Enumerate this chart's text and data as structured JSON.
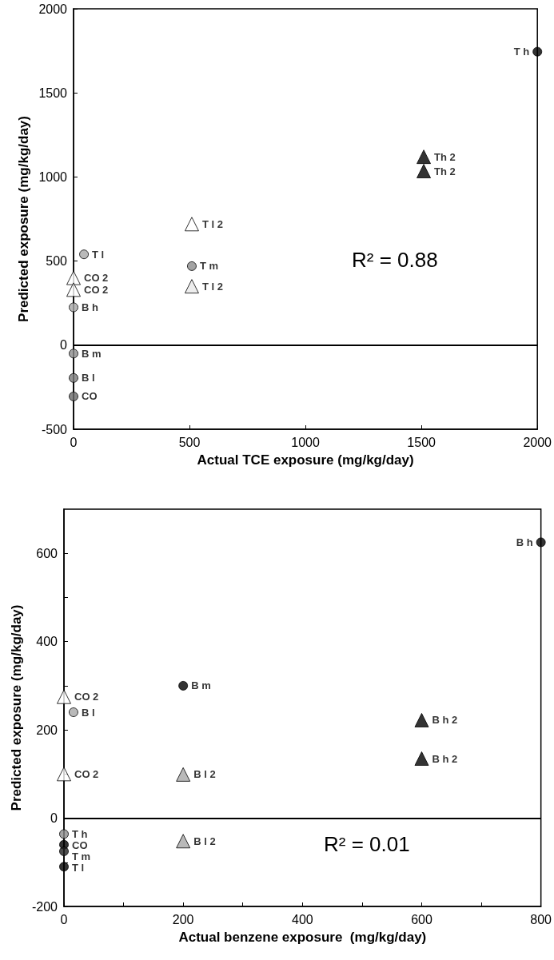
{
  "chart_data": [
    {
      "type": "scatter",
      "xlabel": "Actual TCE exposure (mg/kg/day)",
      "ylabel": "Predicted exposure (mg/kg/day)",
      "xlim": [
        0,
        2000
      ],
      "xticks": [
        0,
        500,
        1000,
        1500,
        2000
      ],
      "ylim": [
        -500,
        2000
      ],
      "yticks": [
        -500,
        0,
        500,
        1000,
        1500,
        2000
      ],
      "grid": false,
      "legend": false,
      "annotations": [
        "R² = 0.88"
      ],
      "ref_lines": [
        {
          "axis": "y",
          "value": 0,
          "color": "#000000"
        }
      ],
      "series": [
        {
          "name": "T l",
          "color": "#a8a8a8",
          "marker": "circle",
          "x": [
            45
          ],
          "values": [
            540
          ]
        },
        {
          "name": "CO 2",
          "color": "#ffffff",
          "marker": "triangle",
          "x": [
            0
          ],
          "values": [
            400
          ]
        },
        {
          "name": "CO 2",
          "color": "#ffffff",
          "marker": "triangle",
          "x": [
            0
          ],
          "values": [
            330
          ]
        },
        {
          "name": "B h",
          "color": "#a8a8a8",
          "marker": "circle",
          "x": [
            0
          ],
          "values": [
            225
          ]
        },
        {
          "name": "B m",
          "color": "#8c8c8c",
          "marker": "circle",
          "x": [
            0
          ],
          "values": [
            -50
          ]
        },
        {
          "name": "B l",
          "color": "#7a7a7a",
          "marker": "circle",
          "x": [
            0
          ],
          "values": [
            -195
          ]
        },
        {
          "name": "CO",
          "color": "#6a6a6a",
          "marker": "circle",
          "x": [
            0
          ],
          "values": [
            -305
          ]
        },
        {
          "name": "T l 2",
          "color": "#ffffff",
          "marker": "triangle",
          "x": [
            510
          ],
          "values": [
            720
          ]
        },
        {
          "name": "T m",
          "color": "#8c8c8c",
          "marker": "circle",
          "x": [
            510
          ],
          "values": [
            470
          ]
        },
        {
          "name": "T l 2",
          "color": "#e8e8e8",
          "marker": "triangle",
          "x": [
            510
          ],
          "values": [
            350
          ]
        },
        {
          "name": "Th 2",
          "color": "#000000",
          "marker": "triangle",
          "x": [
            1510
          ],
          "values": [
            1120
          ]
        },
        {
          "name": "Th 2",
          "color": "#000000",
          "marker": "triangle",
          "x": [
            1510
          ],
          "values": [
            1035
          ]
        },
        {
          "name": "T h",
          "color": "#000000",
          "marker": "circle",
          "x": [
            2000
          ],
          "values": [
            1745
          ]
        }
      ]
    },
    {
      "type": "scatter",
      "xlabel": "Actual benzene exposure  (mg/kg/day)",
      "ylabel": "Predicted exposure (mg/kg/day)",
      "xlim": [
        0,
        800
      ],
      "xticks": [
        0,
        {
          "value": 100,
          "label": null
        },
        200,
        {
          "value": 300,
          "label": null
        },
        400,
        {
          "value": 500,
          "label": null
        },
        600,
        {
          "value": 700,
          "label": null
        },
        800
      ],
      "ylim": [
        -200,
        700
      ],
      "yticks": [
        -200,
        {
          "value": -100,
          "label": null
        },
        0,
        {
          "value": 100,
          "label": null
        },
        200,
        {
          "value": 300,
          "label": null
        },
        400,
        {
          "value": 500,
          "label": null
        },
        600
      ],
      "grid": false,
      "legend": false,
      "annotations": [
        "R² = 0.01"
      ],
      "ref_lines": [
        {
          "axis": "y",
          "value": 0,
          "color": "#000000"
        }
      ],
      "series": [
        {
          "name": "CO 2",
          "color": "#ffffff",
          "marker": "triangle",
          "x": [
            0
          ],
          "values": [
            275
          ]
        },
        {
          "name": "B l",
          "color": "#a8a8a8",
          "marker": "circle",
          "x": [
            16
          ],
          "values": [
            240
          ]
        },
        {
          "name": "CO 2",
          "color": "#ffffff",
          "marker": "triangle",
          "x": [
            0
          ],
          "values": [
            100
          ]
        },
        {
          "name": "B m",
          "color": "#000000",
          "marker": "circle",
          "x": [
            200
          ],
          "values": [
            300
          ]
        },
        {
          "name": "B l 2",
          "color": "#a8a8a8",
          "marker": "triangle",
          "x": [
            200
          ],
          "values": [
            99
          ]
        },
        {
          "name": "B l 2",
          "color": "#a8a8a8",
          "marker": "triangle",
          "x": [
            200
          ],
          "values": [
            -52
          ]
        },
        {
          "name": "B h 2",
          "color": "#000000",
          "marker": "triangle",
          "x": [
            600
          ],
          "values": [
            222
          ]
        },
        {
          "name": "B h 2",
          "color": "#000000",
          "marker": "triangle",
          "x": [
            600
          ],
          "values": [
            135
          ]
        },
        {
          "name": "B h",
          "color": "#000000",
          "marker": "circle",
          "x": [
            800
          ],
          "values": [
            625
          ]
        },
        {
          "name": "T h",
          "color": "#8c8c8c",
          "marker": "circle",
          "x": [
            0
          ],
          "values": [
            -36
          ]
        },
        {
          "name": "CO",
          "color": "#000000",
          "marker": "circle",
          "x": [
            0
          ],
          "values": [
            -60
          ]
        },
        {
          "name": "T m",
          "color": "#222222",
          "marker": "circle",
          "x": [
            0
          ],
          "values": [
            -75
          ]
        },
        {
          "name": "T l",
          "color": "#000000",
          "marker": "circle",
          "x": [
            0
          ],
          "values": [
            -110
          ]
        }
      ]
    }
  ]
}
